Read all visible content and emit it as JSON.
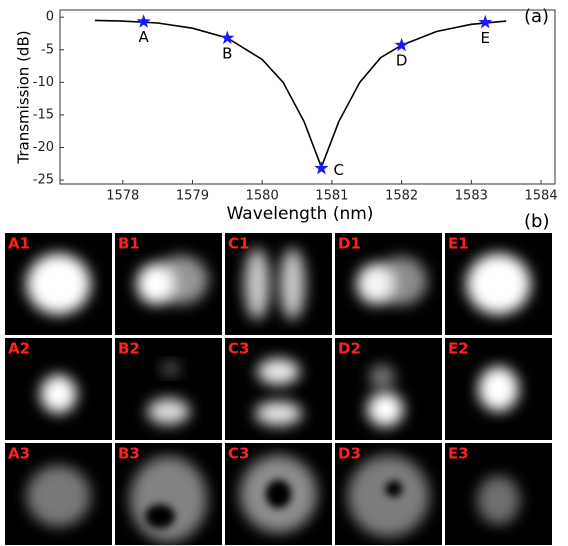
{
  "chart_data": {
    "type": "line",
    "panel_label": "(a)",
    "x_label": "Wavelength (nm)",
    "y_label": "Transmission (dB)",
    "xlim": [
      1577.1,
      1584.2
    ],
    "xticks": [
      1578,
      1579,
      1580,
      1581,
      1582,
      1583,
      1584
    ],
    "ylim": [
      -25.6,
      1.1
    ],
    "yticks": [
      0,
      -5,
      -10,
      -15,
      -20,
      -25
    ],
    "line": {
      "color": "#000000",
      "x": [
        1577.6,
        1578,
        1578.5,
        1579,
        1579.5,
        1580,
        1580.3,
        1580.6,
        1580.85,
        1581.1,
        1581.4,
        1581.7,
        1582,
        1582.5,
        1583,
        1583.5
      ],
      "values": [
        -0.5,
        -0.6,
        -0.9,
        -1.7,
        -3.2,
        -6.5,
        -10,
        -16,
        -23,
        -16,
        -10,
        -6.2,
        -4.3,
        -2.2,
        -1.1,
        -0.6
      ]
    },
    "points": {
      "color": "#1a1aff",
      "labels": [
        "A",
        "B",
        "C",
        "D",
        "E"
      ],
      "x": [
        1578.3,
        1579.5,
        1580.85,
        1582,
        1583.2
      ],
      "values": [
        -0.7,
        -3.2,
        -23.2,
        -4.3,
        -0.8
      ]
    }
  },
  "images": {
    "panel_label": "(b)",
    "labels": [
      [
        "A1",
        "B1",
        "C1",
        "D1",
        "E1"
      ],
      [
        "A2",
        "B2",
        "C3",
        "D2",
        "E2"
      ],
      [
        "A3",
        "B3",
        "C3",
        "D3",
        "E3"
      ]
    ]
  }
}
